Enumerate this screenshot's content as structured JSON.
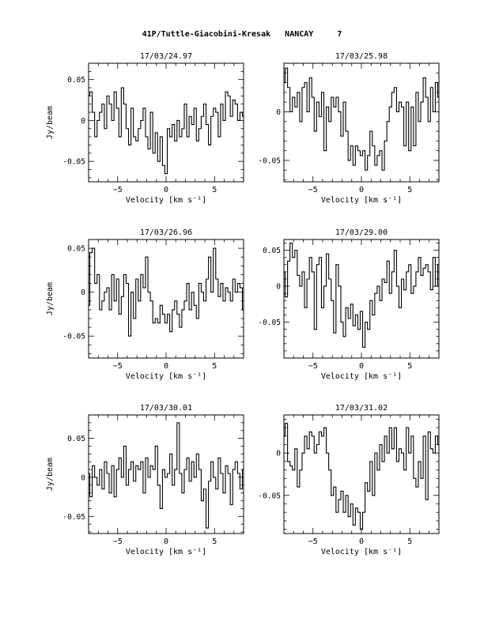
{
  "page_title": "41P/Tuttle-Giacobini-Kresak   NANCAY     7",
  "colors": {
    "line": "#000000",
    "background": "#ffffff"
  },
  "chart_data": [
    {
      "type": "line",
      "title": "17/03/24.97",
      "xlabel": "Velocity [km s⁻¹]",
      "ylabel": "Jy/beam",
      "xlim": [
        -8,
        8
      ],
      "ylim": [
        -0.075,
        0.07
      ],
      "xticks": [
        -5,
        0,
        5
      ],
      "yticks": [
        -0.05,
        0,
        0.05
      ],
      "ytick_labels": [
        "-0.05",
        "0",
        "0.05"
      ],
      "x": [
        -8.0,
        -7.75,
        -7.5,
        -7.25,
        -7.0,
        -6.75,
        -6.5,
        -6.25,
        -6.0,
        -5.75,
        -5.5,
        -5.25,
        -5.0,
        -4.75,
        -4.5,
        -4.25,
        -4.0,
        -3.75,
        -3.5,
        -3.25,
        -3.0,
        -2.75,
        -2.5,
        -2.25,
        -2.0,
        -1.75,
        -1.5,
        -1.25,
        -1.0,
        -0.75,
        -0.5,
        -0.25,
        0.0,
        0.25,
        0.5,
        0.75,
        1.0,
        1.25,
        1.5,
        1.75,
        2.0,
        2.25,
        2.5,
        2.75,
        3.0,
        3.25,
        3.5,
        3.75,
        4.0,
        4.25,
        4.5,
        4.75,
        5.0,
        5.25,
        5.5,
        5.75,
        6.0,
        6.25,
        6.5,
        6.75,
        7.0,
        7.25,
        7.5,
        7.75,
        8.0
      ],
      "values": [
        0.03,
        0.035,
        0.01,
        -0.02,
        0.0,
        0.01,
        0.02,
        -0.01,
        0.03,
        0.02,
        0.0,
        0.035,
        0.015,
        -0.02,
        0.04,
        0.02,
        -0.01,
        -0.03,
        0.015,
        -0.02,
        -0.025,
        -0.01,
        0.0,
        0.015,
        -0.02,
        -0.035,
        0.01,
        -0.04,
        -0.015,
        -0.05,
        -0.02,
        -0.055,
        -0.065,
        -0.01,
        -0.02,
        -0.005,
        -0.025,
        0.0,
        -0.02,
        -0.01,
        0.02,
        -0.02,
        0.005,
        -0.005,
        0.015,
        -0.025,
        -0.01,
        0.005,
        0.02,
        -0.005,
        -0.03,
        0.005,
        0.015,
        0.01,
        -0.02,
        0.02,
        0.0,
        0.035,
        0.03,
        0.005,
        0.025,
        0.02,
        0.0,
        0.01,
        0.005
      ]
    },
    {
      "type": "line",
      "title": "17/03/25.98",
      "xlabel": "Velocity [km s⁻¹]",
      "ylabel": "",
      "xlim": [
        -8,
        8
      ],
      "ylim": [
        -0.072,
        0.05
      ],
      "xticks": [
        -5,
        0,
        5
      ],
      "yticks": [
        -0.05,
        0
      ],
      "ytick_labels": [
        "-0.05",
        "0"
      ],
      "x": [
        -8.0,
        -7.75,
        -7.5,
        -7.25,
        -7.0,
        -6.75,
        -6.5,
        -6.25,
        -6.0,
        -5.75,
        -5.5,
        -5.25,
        -5.0,
        -4.75,
        -4.5,
        -4.25,
        -4.0,
        -3.75,
        -3.5,
        -3.25,
        -3.0,
        -2.75,
        -2.5,
        -2.25,
        -2.0,
        -1.75,
        -1.5,
        -1.25,
        -1.0,
        -0.75,
        -0.5,
        -0.25,
        0.0,
        0.25,
        0.5,
        0.75,
        1.0,
        1.25,
        1.5,
        1.75,
        2.0,
        2.25,
        2.5,
        2.75,
        3.0,
        3.25,
        3.5,
        3.75,
        4.0,
        4.25,
        4.5,
        4.75,
        5.0,
        5.25,
        5.5,
        5.75,
        6.0,
        6.25,
        6.5,
        6.75,
        7.0,
        7.25,
        7.5,
        7.75,
        8.0
      ],
      "values": [
        0.03,
        0.045,
        0.025,
        0.0,
        0.015,
        0.005,
        0.02,
        -0.01,
        0.025,
        0.03,
        0.0,
        0.035,
        0.015,
        -0.02,
        0.01,
        -0.005,
        0.02,
        -0.04,
        0.005,
        -0.01,
        0.015,
        0.005,
        0.015,
        0.0,
        -0.025,
        0.01,
        -0.02,
        -0.05,
        -0.035,
        -0.055,
        -0.035,
        -0.04,
        -0.045,
        -0.04,
        -0.06,
        -0.045,
        -0.02,
        -0.035,
        -0.055,
        -0.045,
        -0.04,
        -0.06,
        -0.03,
        -0.01,
        0.005,
        0.02,
        0.025,
        0.0,
        0.01,
        0.005,
        -0.035,
        0.01,
        -0.04,
        0.005,
        -0.035,
        0.02,
        -0.01,
        0.01,
        0.035,
        0.015,
        -0.01,
        0.025,
        0.0,
        0.03,
        0.015
      ]
    },
    {
      "type": "line",
      "title": "17/03/26.96",
      "xlabel": "Velocity [km s⁻¹]",
      "ylabel": "Jy/beam",
      "xlim": [
        -8,
        8
      ],
      "ylim": [
        -0.075,
        0.06
      ],
      "xticks": [
        -5,
        0,
        5
      ],
      "yticks": [
        -0.05,
        0,
        0.05
      ],
      "ytick_labels": [
        "-0.05",
        "0",
        "0.05"
      ],
      "x": [
        -8.0,
        -7.75,
        -7.5,
        -7.25,
        -7.0,
        -6.75,
        -6.5,
        -6.25,
        -6.0,
        -5.75,
        -5.5,
        -5.25,
        -5.0,
        -4.75,
        -4.5,
        -4.25,
        -4.0,
        -3.75,
        -3.5,
        -3.25,
        -3.0,
        -2.75,
        -2.5,
        -2.25,
        -2.0,
        -1.75,
        -1.5,
        -1.25,
        -1.0,
        -0.75,
        -0.5,
        -0.25,
        0.0,
        0.25,
        0.5,
        0.75,
        1.0,
        1.25,
        1.5,
        1.75,
        2.0,
        2.25,
        2.5,
        2.75,
        3.0,
        3.25,
        3.5,
        3.75,
        4.0,
        4.25,
        4.5,
        4.75,
        5.0,
        5.25,
        5.5,
        5.75,
        6.0,
        6.25,
        6.5,
        6.75,
        7.0,
        7.25,
        7.5,
        7.75,
        8.0
      ],
      "values": [
        -0.015,
        0.045,
        0.05,
        0.01,
        0.02,
        -0.02,
        -0.01,
        0.0,
        0.005,
        -0.02,
        0.02,
        -0.01,
        0.015,
        -0.025,
        -0.005,
        0.02,
        0.01,
        -0.05,
        0.0,
        -0.03,
        0.015,
        -0.01,
        0.02,
        0.005,
        0.04,
        0.0,
        -0.01,
        -0.035,
        -0.03,
        -0.035,
        -0.015,
        -0.025,
        -0.035,
        -0.025,
        -0.045,
        -0.02,
        -0.01,
        -0.025,
        -0.04,
        -0.02,
        -0.01,
        0.01,
        -0.02,
        0.0,
        -0.015,
        -0.03,
        0.01,
        0.0,
        -0.01,
        0.015,
        0.04,
        0.0,
        0.05,
        0.015,
        -0.005,
        0.01,
        -0.01,
        0.005,
        0.0,
        -0.01,
        0.015,
        0.0,
        0.01,
        0.005,
        -0.02
      ]
    },
    {
      "type": "line",
      "title": "17/03/29.00",
      "xlabel": "Velocity [km s⁻¹]",
      "ylabel": "",
      "xlim": [
        -8,
        8
      ],
      "ylim": [
        -0.1,
        0.065
      ],
      "xticks": [
        -5,
        0,
        5
      ],
      "yticks": [
        -0.05,
        0,
        0.05
      ],
      "ytick_labels": [
        "-0.05",
        "0",
        "0.05"
      ],
      "x": [
        -8.0,
        -7.75,
        -7.5,
        -7.25,
        -7.0,
        -6.75,
        -6.5,
        -6.25,
        -6.0,
        -5.75,
        -5.5,
        -5.25,
        -5.0,
        -4.75,
        -4.5,
        -4.25,
        -4.0,
        -3.75,
        -3.5,
        -3.25,
        -3.0,
        -2.75,
        -2.5,
        -2.25,
        -2.0,
        -1.75,
        -1.5,
        -1.25,
        -1.0,
        -0.75,
        -0.5,
        -0.25,
        0.0,
        0.25,
        0.5,
        0.75,
        1.0,
        1.25,
        1.5,
        1.75,
        2.0,
        2.25,
        2.5,
        2.75,
        3.0,
        3.25,
        3.5,
        3.75,
        4.0,
        4.25,
        4.5,
        4.75,
        5.0,
        5.25,
        5.5,
        5.75,
        6.0,
        6.25,
        6.5,
        6.75,
        7.0,
        7.25,
        7.5,
        7.75,
        8.0
      ],
      "values": [
        0.02,
        -0.015,
        0.035,
        0.06,
        0.04,
        0.05,
        0.015,
        0.0,
        0.02,
        -0.03,
        0.01,
        0.04,
        0.02,
        -0.06,
        0.03,
        0.04,
        -0.03,
        0.0,
        0.045,
        0.01,
        -0.02,
        -0.065,
        0.03,
        0.0,
        -0.05,
        -0.07,
        -0.03,
        -0.045,
        -0.025,
        -0.055,
        -0.04,
        -0.06,
        -0.035,
        -0.085,
        -0.05,
        -0.06,
        -0.02,
        -0.04,
        -0.01,
        0.0,
        -0.02,
        0.01,
        0.005,
        0.035,
        -0.01,
        0.02,
        0.05,
        0.0,
        -0.03,
        0.01,
        -0.005,
        0.02,
        0.03,
        -0.01,
        0.0,
        0.02,
        0.04,
        0.015,
        0.025,
        0.03,
        0.02,
        -0.005,
        0.04,
        0.0,
        0.03
      ]
    },
    {
      "type": "line",
      "title": "17/03/30.01",
      "xlabel": "Velocity [km s⁻¹]",
      "ylabel": "Jy/beam",
      "xlim": [
        -8,
        8
      ],
      "ylim": [
        -0.072,
        0.08
      ],
      "xticks": [
        -5,
        0,
        5
      ],
      "yticks": [
        -0.05,
        0,
        0.05
      ],
      "ytick_labels": [
        "-0.05",
        "0",
        "0.05"
      ],
      "x": [
        -8.0,
        -7.75,
        -7.5,
        -7.25,
        -7.0,
        -6.75,
        -6.5,
        -6.25,
        -6.0,
        -5.75,
        -5.5,
        -5.25,
        -5.0,
        -4.75,
        -4.5,
        -4.25,
        -4.0,
        -3.75,
        -3.5,
        -3.25,
        -3.0,
        -2.75,
        -2.5,
        -2.25,
        -2.0,
        -1.75,
        -1.5,
        -1.25,
        -1.0,
        -0.75,
        -0.5,
        -0.25,
        0.0,
        0.25,
        0.5,
        0.75,
        1.0,
        1.25,
        1.5,
        1.75,
        2.0,
        2.25,
        2.5,
        2.75,
        3.0,
        3.25,
        3.5,
        3.75,
        4.0,
        4.25,
        4.5,
        4.75,
        5.0,
        5.25,
        5.5,
        5.75,
        6.0,
        6.25,
        6.5,
        6.75,
        7.0,
        7.25,
        7.5,
        7.75,
        8.0
      ],
      "values": [
        0.005,
        -0.025,
        0.015,
        0.0,
        -0.01,
        0.01,
        -0.015,
        0.02,
        0.005,
        -0.02,
        0.015,
        -0.025,
        0.01,
        0.025,
        0.0,
        0.04,
        -0.01,
        0.01,
        0.02,
        -0.005,
        0.015,
        0.01,
        0.02,
        -0.02,
        0.025,
        0.0,
        0.015,
        0.01,
        0.04,
        -0.01,
        -0.04,
        0.01,
        0.0,
        0.005,
        0.03,
        -0.01,
        0.01,
        0.07,
        0.005,
        -0.02,
        0.01,
        0.025,
        -0.005,
        0.02,
        0.0,
        0.03,
        0.01,
        -0.03,
        -0.015,
        -0.065,
        -0.005,
        0.02,
        0.0,
        -0.015,
        0.025,
        0.005,
        -0.02,
        0.015,
        0.005,
        -0.035,
        0.01,
        0.02,
        0.005,
        -0.015,
        0.01
      ]
    },
    {
      "type": "line",
      "title": "17/03/31.02",
      "xlabel": "Velocity [km s⁻¹]",
      "ylabel": "",
      "xlim": [
        -8,
        8
      ],
      "ylim": [
        -0.095,
        0.045
      ],
      "xticks": [
        -5,
        0,
        5
      ],
      "yticks": [
        -0.05,
        0
      ],
      "ytick_labels": [
        "-0.05",
        "0"
      ],
      "x": [
        -8.0,
        -7.75,
        -7.5,
        -7.25,
        -7.0,
        -6.75,
        -6.5,
        -6.25,
        -6.0,
        -5.75,
        -5.5,
        -5.25,
        -5.0,
        -4.75,
        -4.5,
        -4.25,
        -4.0,
        -3.75,
        -3.5,
        -3.25,
        -3.0,
        -2.75,
        -2.5,
        -2.25,
        -2.0,
        -1.75,
        -1.5,
        -1.25,
        -1.0,
        -0.75,
        -0.5,
        -0.25,
        0.0,
        0.25,
        0.5,
        0.75,
        1.0,
        1.25,
        1.5,
        1.75,
        2.0,
        2.25,
        2.5,
        2.75,
        3.0,
        3.25,
        3.5,
        3.75,
        4.0,
        4.25,
        4.5,
        4.75,
        5.0,
        5.25,
        5.5,
        5.75,
        6.0,
        6.25,
        6.5,
        6.75,
        7.0,
        7.25,
        7.5,
        7.75,
        8.0
      ],
      "values": [
        0.02,
        0.035,
        -0.01,
        -0.015,
        -0.02,
        0.005,
        -0.04,
        -0.02,
        0.0,
        0.02,
        0.005,
        0.025,
        0.02,
        0.0,
        0.01,
        0.025,
        0.02,
        0.03,
        0.0,
        -0.02,
        -0.05,
        -0.04,
        -0.07,
        -0.055,
        -0.045,
        -0.07,
        -0.05,
        -0.075,
        -0.06,
        -0.085,
        -0.065,
        -0.07,
        -0.09,
        -0.07,
        -0.035,
        -0.045,
        -0.01,
        -0.05,
        0.0,
        -0.02,
        0.01,
        -0.01,
        0.02,
        0.0,
        0.03,
        0.005,
        0.03,
        -0.01,
        0.005,
        0.0,
        -0.02,
        0.03,
        0.0,
        0.02,
        -0.03,
        -0.04,
        -0.01,
        -0.03,
        0.02,
        -0.055,
        0.025,
        0.005,
        0.0,
        0.02,
        0.01
      ]
    }
  ]
}
